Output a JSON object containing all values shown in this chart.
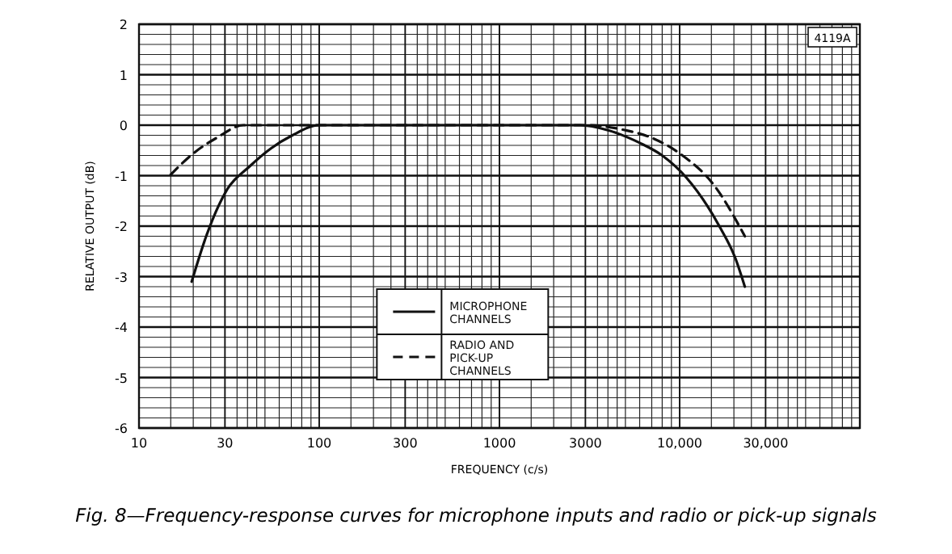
{
  "chart_data": {
    "type": "line",
    "title": "Fig. 8—Frequency-response curves for microphone inputs and radio or pick-up signals",
    "xlabel": "FREQUENCY (c/s)",
    "ylabel": "RELATIVE OUTPUT (dB)",
    "log": "x",
    "xlim": [
      10,
      100000
    ],
    "ylim": [
      -6,
      2
    ],
    "xticks": [
      10,
      30,
      100,
      300,
      1000,
      3000,
      {
        "value": 10000,
        "label": "10,000"
      },
      {
        "value": 30000,
        "label": "30,000"
      }
    ],
    "yticks": [
      -6,
      -5,
      -4,
      -3,
      -2,
      -1,
      0,
      1,
      2
    ],
    "grid": true,
    "legend": "bottom",
    "annotations": [
      "4119A"
    ],
    "series": [
      {
        "name": "MICROPHONE CHANNELS",
        "color": "#111111",
        "line_style": "solid",
        "x": [
          19.6,
          23.6,
          31,
          41,
          54,
          71,
          100,
          2800,
          4000,
          6000,
          8000,
          10900,
          16600,
          20400,
          23000
        ],
        "values": [
          -3.1,
          -2.2,
          -1.26,
          -0.82,
          -0.46,
          -0.2,
          0,
          0,
          -0.1,
          -0.35,
          -0.6,
          -1.04,
          -2.0,
          -2.64,
          -3.2
        ]
      },
      {
        "name": "RADIO AND PICK-UP CHANNELS",
        "color": "#111111",
        "line_style": "dashed",
        "x": [
          15,
          20,
          27,
          38,
          3000,
          5000,
          7000,
          10000,
          15600,
          23000
        ],
        "values": [
          -0.98,
          -0.56,
          -0.25,
          0,
          0,
          -0.1,
          -0.25,
          -0.56,
          -1.2,
          -2.2
        ]
      }
    ]
  }
}
